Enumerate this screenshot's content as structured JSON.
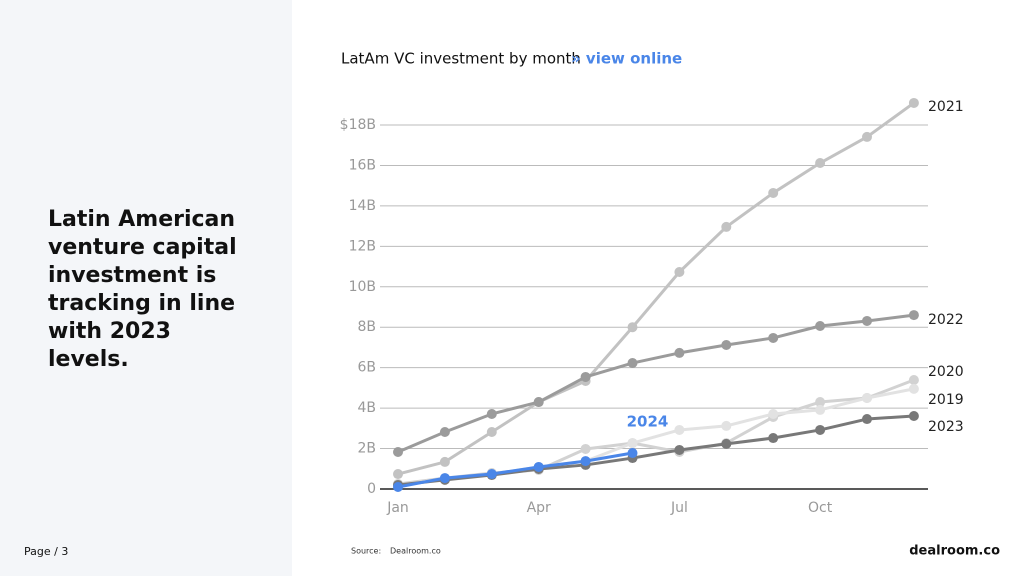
{
  "slide": {
    "heading": "Latin American venture capital investment is tracking in line with 2023 levels.",
    "page": "Page / 3",
    "source_label": "Source:",
    "source": "Dealroom.co",
    "logo": "dealroom.co"
  },
  "chart_data": {
    "type": "line",
    "title": "LatAm VC investment by month",
    "link": "» view online",
    "categories": [
      "Jan",
      null,
      null,
      "Apr",
      null,
      null,
      "Jul",
      null,
      null,
      "Oct",
      null,
      null
    ],
    "ylim": [
      0,
      18
    ],
    "yticks": [
      0,
      {
        "value": 2,
        "label": "2B"
      },
      {
        "value": 4,
        "label": "4B"
      },
      {
        "value": 6,
        "label": "6B"
      },
      {
        "value": 8,
        "label": "8B"
      },
      {
        "value": 10,
        "label": "10B"
      },
      {
        "value": 12,
        "label": "12B"
      },
      {
        "value": 14,
        "label": "14B"
      },
      {
        "value": 16,
        "label": "16B"
      },
      {
        "value": 18,
        "label": "$18B"
      }
    ],
    "grid": true,
    "series": [
      {
        "name": "2021",
        "color": "#c2c2c2",
        "values": [
          0.74,
          1.34,
          2.82,
          4.3,
          5.34,
          8.0,
          10.73,
          12.96,
          14.64,
          16.12,
          17.41,
          19.09
        ]
      },
      {
        "name": "2022",
        "color": "#9b9b9b",
        "values": [
          1.83,
          2.82,
          3.71,
          4.3,
          5.54,
          6.23,
          6.73,
          7.12,
          7.47,
          8.06,
          8.31,
          8.6
        ]
      },
      {
        "name": "2020",
        "color": "#d2d2d2",
        "values": [
          0.25,
          0.54,
          0.79,
          0.94,
          1.98,
          2.27,
          1.83,
          2.27,
          3.56,
          4.3,
          4.5,
          5.39
        ]
      },
      {
        "name": "2019",
        "color": "#e2e2e2",
        "values": [
          0.2,
          0.49,
          0.74,
          1.09,
          1.38,
          2.27,
          2.92,
          3.12,
          3.71,
          3.91,
          4.5,
          4.95
        ]
      },
      {
        "name": "2023",
        "color": "#787878",
        "values": [
          0.2,
          0.45,
          0.69,
          0.99,
          1.19,
          1.53,
          1.93,
          2.23,
          2.52,
          2.92,
          3.46,
          3.61
        ]
      },
      {
        "name": "2024",
        "color": "#4a86e8",
        "values": [
          0.1,
          0.54,
          0.74,
          1.09,
          1.38,
          1.78,
          null,
          null,
          null,
          null,
          null,
          null
        ]
      }
    ]
  }
}
